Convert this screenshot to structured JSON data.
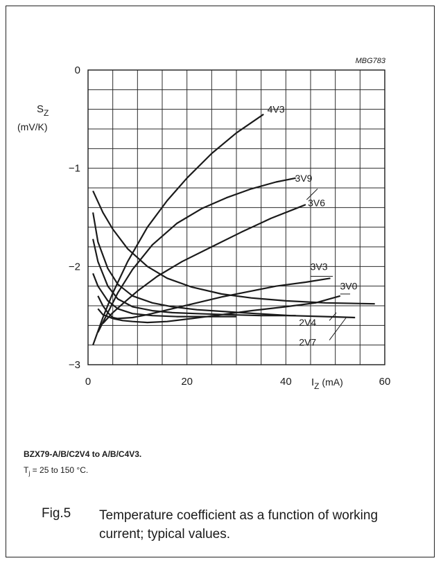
{
  "figure": {
    "code": "MBG783",
    "number": "Fig.5",
    "title": "Temperature coefficient as a function of working current; typical values.",
    "device": "BZX79-A/B/C2V4 to A/B/C4V3.",
    "condition_sym": "T",
    "condition_sub": "j",
    "condition_rest": " = 25 to 150 °C."
  },
  "axes": {
    "ylabel_sym": "S",
    "ylabel_sub": "Z",
    "ylabel_unit": "(mV/K)",
    "xlabel_sym": "I",
    "xlabel_sub": "Z",
    "xlabel_unit": " (mA)"
  },
  "chart_data": {
    "type": "line",
    "xlim": [
      0,
      60
    ],
    "ylim": [
      -3,
      0
    ],
    "grid": true,
    "x_ticks": [
      0,
      20,
      40,
      60
    ],
    "y_ticks": [
      0,
      -1,
      -2,
      -3
    ],
    "x_tick_labels": [
      "0",
      "20",
      "40",
      "60"
    ],
    "y_tick_labels": [
      "0",
      "−1",
      "−2",
      "−3"
    ],
    "series": [
      {
        "name": "4V3",
        "x": [
          1,
          3,
          5,
          8,
          12,
          16,
          20,
          25,
          30,
          35.5
        ],
        "y": [
          -2.8,
          -2.52,
          -2.27,
          -1.95,
          -1.6,
          -1.33,
          -1.1,
          -0.85,
          -0.64,
          -0.45
        ]
      },
      {
        "name": "3V9",
        "x": [
          2,
          4,
          6,
          9,
          13,
          18,
          23,
          28,
          33,
          38,
          42
        ],
        "y": [
          -2.67,
          -2.47,
          -2.27,
          -2.03,
          -1.78,
          -1.56,
          -1.41,
          -1.3,
          -1.21,
          -1.14,
          -1.1
        ]
      },
      {
        "name": "3V6",
        "x": [
          3,
          5,
          7,
          10,
          14,
          19,
          25,
          31,
          37,
          42,
          44
        ],
        "y": [
          -2.58,
          -2.47,
          -2.38,
          -2.25,
          -2.1,
          -1.95,
          -1.8,
          -1.65,
          -1.51,
          -1.41,
          -1.37
        ]
      },
      {
        "name": "3V3",
        "x": [
          2,
          3,
          4,
          5,
          6,
          9,
          12,
          17,
          22,
          27,
          33,
          38,
          44,
          49
        ],
        "y": [
          -2.3,
          -2.4,
          -2.47,
          -2.52,
          -2.53,
          -2.52,
          -2.49,
          -2.43,
          -2.37,
          -2.31,
          -2.25,
          -2.2,
          -2.16,
          -2.12
        ]
      },
      {
        "name": "3V0",
        "x": [
          2,
          3,
          5,
          7,
          9,
          12,
          16,
          21,
          27,
          33,
          40,
          46,
          51
        ],
        "y": [
          -2.43,
          -2.49,
          -2.53,
          -2.55,
          -2.56,
          -2.57,
          -2.56,
          -2.53,
          -2.49,
          -2.45,
          -2.41,
          -2.37,
          -2.3
        ]
      },
      {
        "name": "2V4",
        "x": [
          1,
          3,
          5,
          8,
          12,
          16,
          21,
          27,
          33,
          40,
          48,
          58
        ],
        "y": [
          -1.23,
          -1.45,
          -1.62,
          -1.82,
          -2.0,
          -2.12,
          -2.21,
          -2.28,
          -2.32,
          -2.35,
          -2.37,
          -2.38
        ]
      },
      {
        "name": "2V7",
        "x": [
          1,
          2,
          4,
          6,
          9,
          13,
          17,
          22,
          28,
          34,
          41,
          48,
          54
        ],
        "y": [
          -1.45,
          -1.75,
          -2.02,
          -2.18,
          -2.3,
          -2.37,
          -2.41,
          -2.44,
          -2.46,
          -2.48,
          -2.5,
          -2.51,
          -2.52
        ]
      },
      {
        "x": [
          1,
          2,
          4,
          6,
          9,
          13,
          17,
          22,
          28,
          35,
          42
        ],
        "y": [
          -1.72,
          -1.95,
          -2.2,
          -2.33,
          -2.41,
          -2.45,
          -2.47,
          -2.48,
          -2.49,
          -2.5,
          -2.5
        ]
      },
      {
        "x": [
          1,
          2,
          4,
          6,
          9,
          13,
          18,
          24,
          30
        ],
        "y": [
          -2.07,
          -2.2,
          -2.35,
          -2.43,
          -2.48,
          -2.5,
          -2.51,
          -2.51,
          -2.51
        ]
      }
    ],
    "curve_labels": [
      {
        "text": "4V3",
        "x": 38,
        "y": -0.4
      },
      {
        "text": "3V9",
        "x": 43.6,
        "y": -1.1
      },
      {
        "text": "3V6",
        "x": 46.2,
        "y": -1.35
      },
      {
        "text": "3V3",
        "x": 46.7,
        "y": -2.0
      },
      {
        "text": "3V0",
        "x": 52.7,
        "y": -2.2
      },
      {
        "text": "2V4",
        "x": 44.4,
        "y": -2.57
      },
      {
        "text": "2V7",
        "x": 44.4,
        "y": -2.77
      }
    ]
  }
}
